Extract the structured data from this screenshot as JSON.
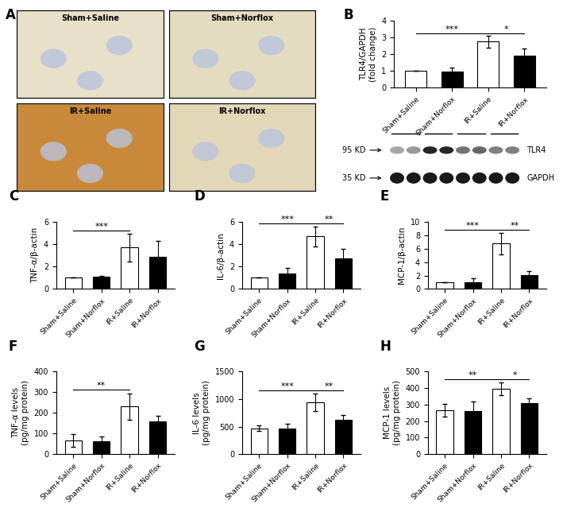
{
  "images": {
    "panel": "A",
    "image_labels": [
      "Sham+Saline",
      "Sham+Norflox",
      "IR+Saline",
      "IR+Norflox"
    ]
  },
  "blot": {
    "bands": [
      {
        "size": "95 KD",
        "name": "TLR4"
      },
      {
        "size": "35 KD",
        "name": "GAPDH"
      }
    ]
  },
  "chart_data": [
    {
      "panel": "B",
      "type": "bar",
      "y_label": "TLR4/GAPDH\n(fold change)",
      "categories": [
        "Sham+Saline",
        "Sham+Norflox",
        "IR+Saline",
        "IR+Norflox"
      ],
      "values": [
        1,
        0.95,
        2.75,
        1.9
      ],
      "errors": [
        0,
        0.25,
        0.35,
        0.45
      ],
      "colors": [
        "#ffffff",
        "#000000",
        "#ffffff",
        "#000000"
      ],
      "ylim": [
        0,
        4
      ],
      "yticks": [
        0,
        1,
        2,
        3,
        4
      ],
      "significance": [
        {
          "between": [
            "Sham+Saline",
            "IR+Saline"
          ],
          "label": "***"
        },
        {
          "between": [
            "IR+Saline",
            "IR+Norflox"
          ],
          "label": "*"
        }
      ]
    },
    {
      "panel": "C",
      "type": "bar",
      "y_label": "TNF-α/β-actin",
      "categories": [
        "Sham+Saline",
        "Sham+Norflox",
        "IR+Saline",
        "IR+Norflox"
      ],
      "values": [
        1,
        1.1,
        3.7,
        2.85
      ],
      "errors": [
        0,
        0.1,
        1.25,
        1.45
      ],
      "colors": [
        "#ffffff",
        "#000000",
        "#ffffff",
        "#000000"
      ],
      "ylim": [
        0,
        6
      ],
      "yticks": [
        0,
        2,
        4,
        6
      ],
      "significance": [
        {
          "between": [
            "Sham+Saline",
            "IR+Saline"
          ],
          "label": "***"
        }
      ]
    },
    {
      "panel": "D",
      "type": "bar",
      "y_label": "IL-6/β-actin",
      "categories": [
        "Sham+Saline",
        "Sham+Norflox",
        "IR+Saline",
        "IR+Norflox"
      ],
      "values": [
        1,
        1.35,
        4.7,
        2.7
      ],
      "errors": [
        0,
        0.55,
        0.9,
        0.9
      ],
      "colors": [
        "#ffffff",
        "#000000",
        "#ffffff",
        "#000000"
      ],
      "ylim": [
        0,
        6
      ],
      "yticks": [
        0,
        2,
        4,
        6
      ],
      "significance": [
        {
          "between": [
            "Sham+Saline",
            "IR+Saline"
          ],
          "label": "***"
        },
        {
          "between": [
            "IR+Saline",
            "IR+Norflox"
          ],
          "label": "**"
        }
      ]
    },
    {
      "panel": "E",
      "type": "bar",
      "y_label": "MCP-1/β-actin",
      "categories": [
        "Sham+Saline",
        "Sham+Norflox",
        "IR+Saline",
        "IR+Norflox"
      ],
      "values": [
        1,
        1.0,
        6.8,
        2.1
      ],
      "errors": [
        0,
        0.65,
        1.6,
        0.55
      ],
      "colors": [
        "#ffffff",
        "#000000",
        "#ffffff",
        "#000000"
      ],
      "ylim": [
        0,
        10
      ],
      "yticks": [
        0,
        2,
        4,
        6,
        8,
        10
      ],
      "significance": [
        {
          "between": [
            "Sham+Saline",
            "IR+Saline"
          ],
          "label": "***"
        },
        {
          "between": [
            "IR+Saline",
            "IR+Norflox"
          ],
          "label": "**"
        }
      ]
    },
    {
      "panel": "F",
      "type": "bar",
      "y_label": "TNF-α levels\n(pg/mg protein)",
      "categories": [
        "Sham+Saline",
        "Sham+Norflox",
        "IR+Saline",
        "IR+Norflox"
      ],
      "values": [
        65,
        62,
        230,
        158
      ],
      "errors": [
        30,
        22,
        65,
        28
      ],
      "colors": [
        "#ffffff",
        "#000000",
        "#ffffff",
        "#000000"
      ],
      "ylim": [
        0,
        400
      ],
      "yticks": [
        0,
        100,
        200,
        300,
        400
      ],
      "significance": [
        {
          "between": [
            "Sham+Saline",
            "IR+Saline"
          ],
          "label": "**"
        }
      ]
    },
    {
      "panel": "G",
      "type": "bar",
      "y_label": "IL-6 levels\n(pg/mg protein)",
      "categories": [
        "Sham+Saline",
        "Sham+Norflox",
        "IR+Saline",
        "IR+Norflox"
      ],
      "values": [
        470,
        460,
        940,
        620
      ],
      "errors": [
        50,
        95,
        160,
        90
      ],
      "colors": [
        "#ffffff",
        "#000000",
        "#ffffff",
        "#000000"
      ],
      "ylim": [
        0,
        1500
      ],
      "yticks": [
        0,
        500,
        1000,
        1500
      ],
      "significance": [
        {
          "between": [
            "Sham+Saline",
            "IR+Saline"
          ],
          "label": "***"
        },
        {
          "between": [
            "IR+Saline",
            "IR+Norflox"
          ],
          "label": "**"
        }
      ]
    },
    {
      "panel": "H",
      "type": "bar",
      "y_label": "MCP-1 levels\n(pg/mg protein)",
      "categories": [
        "Sham+Saline",
        "Sham+Norflox",
        "IR+Saline",
        "IR+Norflox"
      ],
      "values": [
        265,
        262,
        395,
        307
      ],
      "errors": [
        40,
        55,
        40,
        30
      ],
      "colors": [
        "#ffffff",
        "#000000",
        "#ffffff",
        "#000000"
      ],
      "ylim": [
        0,
        500
      ],
      "yticks": [
        0,
        100,
        200,
        300,
        400,
        500
      ],
      "significance": [
        {
          "between": [
            "Sham+Saline",
            "IR+Saline"
          ],
          "label": "**"
        },
        {
          "between": [
            "IR+Saline",
            "IR+Norflox"
          ],
          "label": "*"
        }
      ]
    }
  ]
}
